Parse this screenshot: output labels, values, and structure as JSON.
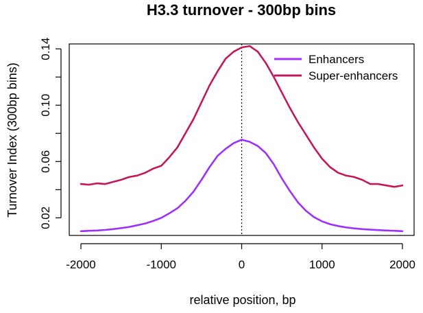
{
  "chart_data": {
    "type": "line",
    "title": "H3.3 turnover - 300bp bins",
    "xlabel": "relative position, bp",
    "ylabel": "Turnover Index (300bp bins)",
    "xlim": [
      -2000,
      2000
    ],
    "ylim": [
      0.0075,
      0.1435
    ],
    "xticks": [
      -2000,
      -1000,
      0,
      1000,
      2000
    ],
    "xtick_labels": [
      "-2000",
      "-1000",
      "0",
      "1000",
      "2000"
    ],
    "yticks": [
      0.02,
      0.06,
      0.1,
      0.14
    ],
    "ytick_labels": [
      "0.02",
      "0.06",
      "0.10",
      "0.14"
    ],
    "grid": false,
    "legend_position": "top-right",
    "reference_line": {
      "x": 0,
      "style": "dotted"
    },
    "series": [
      {
        "name": "Enhancers",
        "color": "#9B30FF",
        "x": [
          -2000,
          -1900,
          -1800,
          -1700,
          -1600,
          -1500,
          -1400,
          -1300,
          -1200,
          -1100,
          -1000,
          -900,
          -800,
          -700,
          -600,
          -500,
          -400,
          -300,
          -200,
          -100,
          0,
          100,
          200,
          300,
          400,
          500,
          600,
          700,
          800,
          900,
          1000,
          1100,
          1200,
          1300,
          1400,
          1500,
          1600,
          1700,
          1800,
          1900,
          2000
        ],
        "y": [
          0.0105,
          0.0108,
          0.011,
          0.0114,
          0.012,
          0.0127,
          0.0135,
          0.0147,
          0.016,
          0.0178,
          0.02,
          0.0232,
          0.0268,
          0.032,
          0.0385,
          0.047,
          0.056,
          0.064,
          0.069,
          0.073,
          0.0755,
          0.074,
          0.071,
          0.066,
          0.058,
          0.048,
          0.039,
          0.031,
          0.025,
          0.0205,
          0.0175,
          0.0155,
          0.0142,
          0.0132,
          0.0125,
          0.012,
          0.0116,
          0.0113,
          0.011,
          0.0108,
          0.0105
        ]
      },
      {
        "name": "Super-enhancers",
        "color": "#C2185B",
        "x": [
          -2000,
          -1900,
          -1800,
          -1700,
          -1600,
          -1500,
          -1400,
          -1300,
          -1200,
          -1100,
          -1000,
          -900,
          -800,
          -700,
          -600,
          -500,
          -400,
          -300,
          -200,
          -100,
          0,
          100,
          200,
          300,
          400,
          500,
          600,
          700,
          800,
          900,
          1000,
          1100,
          1200,
          1300,
          1400,
          1500,
          1600,
          1700,
          1800,
          1900,
          2000
        ],
        "y": [
          0.044,
          0.0435,
          0.0445,
          0.044,
          0.0455,
          0.047,
          0.049,
          0.05,
          0.052,
          0.055,
          0.057,
          0.063,
          0.07,
          0.08,
          0.09,
          0.102,
          0.114,
          0.124,
          0.133,
          0.138,
          0.141,
          0.142,
          0.138,
          0.13,
          0.12,
          0.109,
          0.098,
          0.088,
          0.079,
          0.07,
          0.062,
          0.056,
          0.052,
          0.05,
          0.049,
          0.047,
          0.044,
          0.044,
          0.043,
          0.042,
          0.043
        ]
      }
    ]
  }
}
